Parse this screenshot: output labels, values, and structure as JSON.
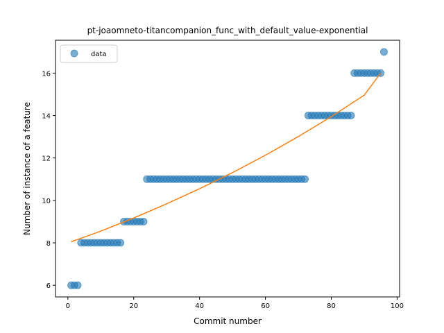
{
  "chart_data": {
    "type": "scatter",
    "title": "pt-joaomneto-titancompanion_func_with_default_value-exponential",
    "xlabel": "Commit number",
    "ylabel": "Number of instance of a feature",
    "xlim": [
      -3.75,
      100.75
    ],
    "ylim": [
      5.45,
      17.55
    ],
    "xticks": [
      0,
      20,
      40,
      60,
      80,
      100
    ],
    "yticks": [
      6,
      8,
      10,
      12,
      14,
      16
    ],
    "grid": false,
    "legend_position": "top-left",
    "series": [
      {
        "name": "data",
        "kind": "points",
        "color": "#1f77b4",
        "x": [
          1,
          2,
          3,
          4,
          5,
          6,
          7,
          8,
          9,
          10,
          11,
          12,
          13,
          14,
          15,
          16,
          17,
          18,
          19,
          20,
          21,
          22,
          23,
          24,
          25,
          26,
          27,
          28,
          29,
          30,
          31,
          32,
          33,
          34,
          35,
          36,
          37,
          38,
          39,
          40,
          41,
          42,
          43,
          44,
          45,
          46,
          47,
          48,
          49,
          50,
          51,
          52,
          53,
          54,
          55,
          56,
          57,
          58,
          59,
          60,
          61,
          62,
          63,
          64,
          65,
          66,
          67,
          68,
          69,
          70,
          71,
          72,
          73,
          74,
          75,
          76,
          77,
          78,
          79,
          80,
          81,
          82,
          83,
          84,
          85,
          86,
          87,
          88,
          89,
          90,
          91,
          92,
          93,
          94,
          95,
          96
        ],
        "y": [
          6,
          6,
          6,
          8,
          8,
          8,
          8,
          8,
          8,
          8,
          8,
          8,
          8,
          8,
          8,
          8,
          9,
          9,
          9,
          9,
          9,
          9,
          9,
          11,
          11,
          11,
          11,
          11,
          11,
          11,
          11,
          11,
          11,
          11,
          11,
          11,
          11,
          11,
          11,
          11,
          11,
          11,
          11,
          11,
          11,
          11,
          11,
          11,
          11,
          11,
          11,
          11,
          11,
          11,
          11,
          11,
          11,
          11,
          11,
          11,
          11,
          11,
          11,
          11,
          11,
          11,
          11,
          11,
          11,
          11,
          11,
          11,
          14,
          14,
          14,
          14,
          14,
          14,
          14,
          14,
          14,
          14,
          14,
          14,
          14,
          14,
          16,
          16,
          16,
          16,
          16,
          16,
          16,
          16,
          16,
          17
        ]
      },
      {
        "name": "",
        "kind": "line",
        "color": "#ff7f0e",
        "x": [
          1,
          10,
          20,
          30,
          40,
          50,
          60,
          70,
          80,
          90,
          95
        ],
        "y": [
          8.05,
          8.55,
          9.17,
          9.84,
          10.55,
          11.31,
          12.13,
          13.01,
          13.95,
          14.96,
          16.0
        ]
      }
    ]
  }
}
